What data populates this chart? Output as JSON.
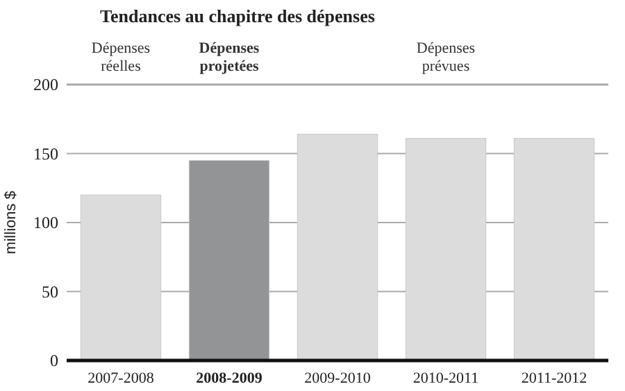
{
  "chart_data": {
    "type": "bar",
    "title": "Tendances au chapitre des dépenses",
    "ylabel": "millions $",
    "categories": [
      "2007-2008",
      "2008-2009",
      "2009-2010",
      "2010-2011",
      "2011-2012"
    ],
    "values": [
      120,
      145,
      164,
      161,
      161
    ],
    "colors": [
      "#dcdcdd",
      "#939496",
      "#dcdcdd",
      "#dcdcdd",
      "#dcdcdd"
    ],
    "ylim": [
      0,
      200
    ],
    "yticks": [
      0,
      50,
      100,
      150,
      200
    ],
    "grid": "y",
    "annotations": [
      "Dépenses réelles",
      "Dépenses projetées",
      "Dépenses prévues"
    ]
  }
}
